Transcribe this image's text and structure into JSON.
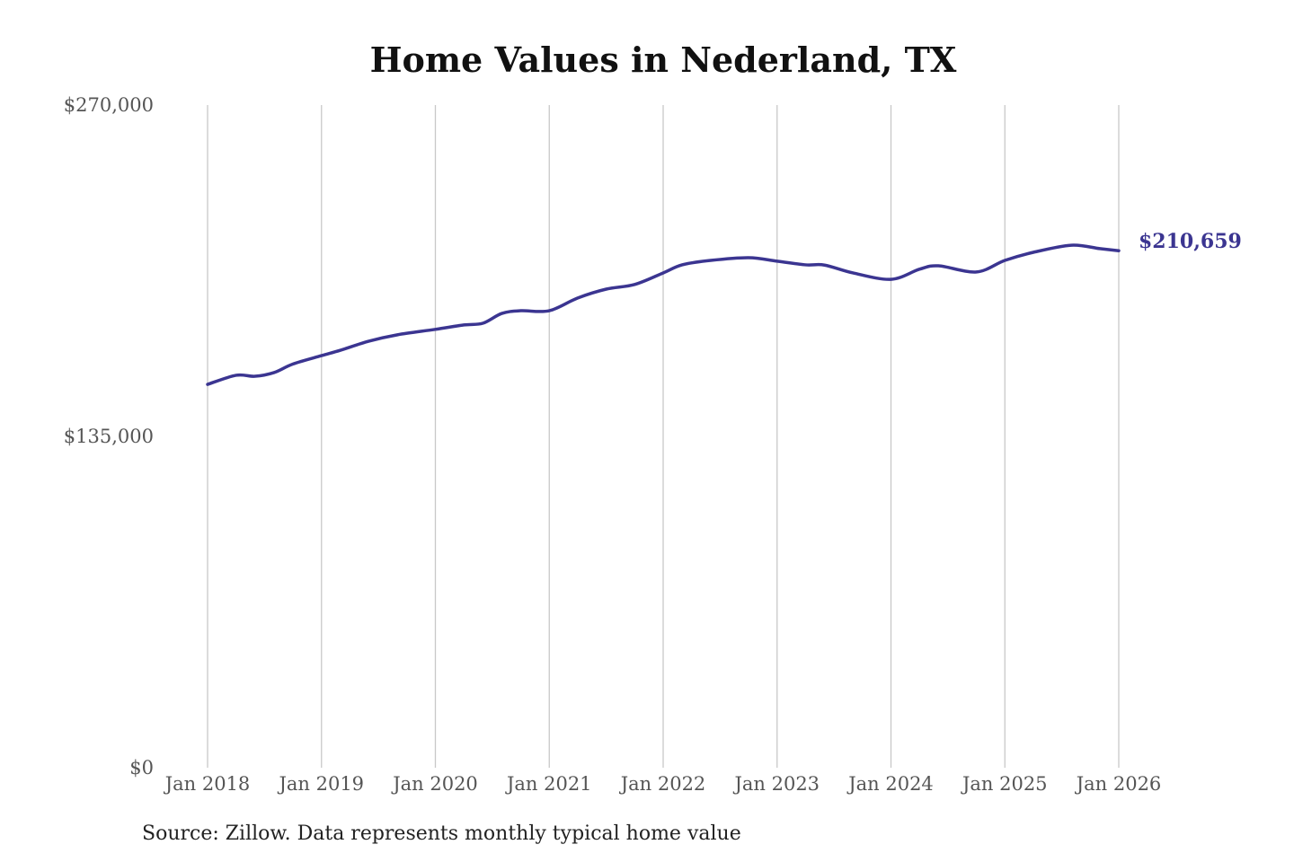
{
  "chart_data": {
    "type": "line",
    "title": "Home Values in Nederland, TX",
    "source": "Source: Zillow. Data represents monthly typical home value",
    "xlabel": "",
    "ylabel": "",
    "ylim": [
      0,
      270000
    ],
    "y_ticks": [
      "$0",
      "$135,000",
      "$270,000"
    ],
    "y_tick_values": [
      0,
      135000,
      270000
    ],
    "x_ticks": [
      "Jan 2018",
      "Jan 2019",
      "Jan 2020",
      "Jan 2021",
      "Jan 2022",
      "Jan 2023",
      "Jan 2024",
      "Jan 2025",
      "Jan 2026"
    ],
    "grid": "vertical",
    "line_color": "#3b3591",
    "end_label": "$210,659",
    "series": [
      {
        "x": [
          "2018-01",
          "2018-04",
          "2018-06",
          "2018-08",
          "2018-10",
          "2019-01",
          "2019-03",
          "2019-06",
          "2019-09",
          "2020-01",
          "2020-04",
          "2020-06",
          "2020-08",
          "2020-10",
          "2021-01",
          "2021-04",
          "2021-07",
          "2021-10",
          "2022-01",
          "2022-03",
          "2022-06",
          "2022-10",
          "2023-01",
          "2023-04",
          "2023-06",
          "2023-09",
          "2024-01",
          "2024-04",
          "2024-06",
          "2024-10",
          "2025-01",
          "2025-04",
          "2025-08",
          "2025-11",
          "2026-01"
        ],
        "y": [
          156200,
          159900,
          159500,
          161000,
          164500,
          167900,
          170100,
          173800,
          176400,
          178600,
          180400,
          181100,
          185100,
          186200,
          186200,
          191400,
          195000,
          196900,
          201600,
          204900,
          206700,
          207800,
          206400,
          204900,
          204800,
          201600,
          199000,
          203100,
          204500,
          202000,
          206700,
          210000,
          212900,
          211500,
          210659
        ]
      }
    ]
  }
}
